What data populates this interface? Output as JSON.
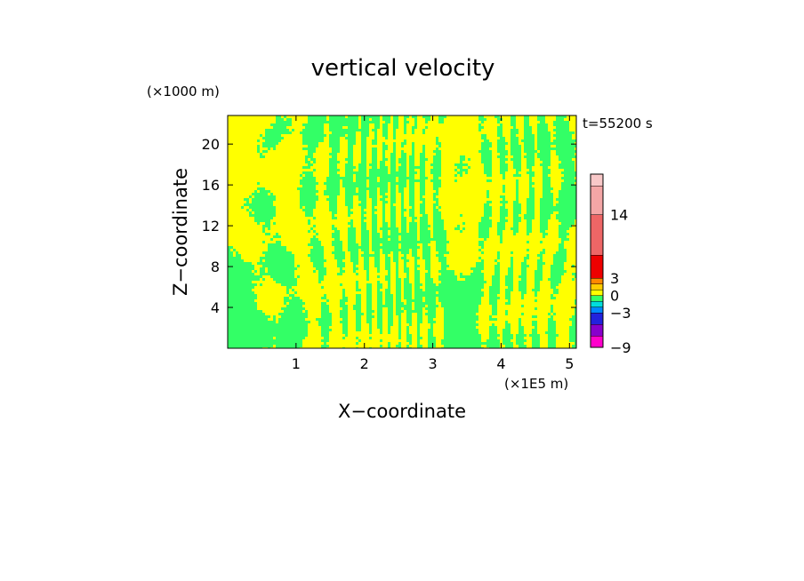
{
  "chart_data": {
    "type": "heatmap",
    "title": "vertical velocity",
    "xlabel": "X−coordinate",
    "ylabel": "Z−coordinate",
    "x_unit": "(×1E5 m)",
    "y_unit": "(×1000 m)",
    "time_label": "t=55200 s",
    "xlim": [
      0,
      5.1
    ],
    "ylim": [
      0,
      22.8
    ],
    "x_ticks": [
      1,
      2,
      3,
      4,
      5
    ],
    "y_ticks": [
      4,
      8,
      12,
      16,
      20
    ],
    "field_classes": [
      {
        "range": [
          -1,
          0
        ],
        "color": "#33ff66"
      },
      {
        "range": [
          0,
          1
        ],
        "color": "#ffff00"
      }
    ],
    "colorbar": {
      "levels": [
        -9,
        -7,
        -5,
        -3,
        -2,
        -1,
        0,
        1,
        2,
        3,
        7,
        14,
        19,
        21
      ],
      "colors": [
        "#ff00cc",
        "#8800cc",
        "#2222dd",
        "#0088ff",
        "#00dddd",
        "#33ff66",
        "#ffff00",
        "#ffcc00",
        "#ff8800",
        "#ee0000",
        "#ee6666",
        "#f4a6a6",
        "#f8c8c8"
      ],
      "tick_labels": [
        {
          "value": 14,
          "label": "14"
        },
        {
          "value": 3,
          "label": "3"
        },
        {
          "value": 0,
          "label": "0"
        },
        {
          "value": -3,
          "label": "−3"
        },
        {
          "value": -9,
          "label": "−9"
        }
      ]
    }
  }
}
